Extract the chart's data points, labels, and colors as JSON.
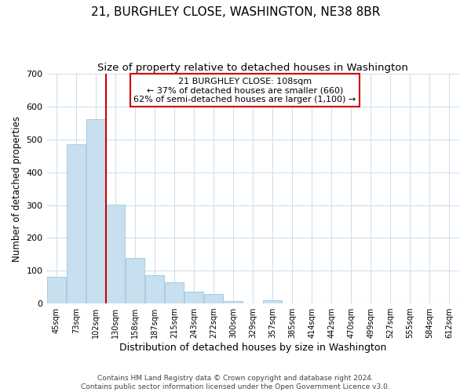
{
  "title": "21, BURGHLEY CLOSE, WASHINGTON, NE38 8BR",
  "subtitle": "Size of property relative to detached houses in Washington",
  "xlabel": "Distribution of detached houses by size in Washington",
  "ylabel": "Number of detached properties",
  "bar_color": "#c8dff0",
  "bar_edge_color": "#a8cce0",
  "grid_color": "#cce0f0",
  "annotation_box_edge": "#cc0000",
  "vline_color": "#cc0000",
  "vline_x": 2.5,
  "annotation_lines": [
    "21 BURGHLEY CLOSE: 108sqm",
    "← 37% of detached houses are smaller (660)",
    "62% of semi-detached houses are larger (1,100) →"
  ],
  "categories": [
    "45sqm",
    "73sqm",
    "102sqm",
    "130sqm",
    "158sqm",
    "187sqm",
    "215sqm",
    "243sqm",
    "272sqm",
    "300sqm",
    "329sqm",
    "357sqm",
    "385sqm",
    "414sqm",
    "442sqm",
    "470sqm",
    "499sqm",
    "527sqm",
    "555sqm",
    "584sqm",
    "612sqm"
  ],
  "bar_heights": [
    82,
    485,
    562,
    302,
    140,
    86,
    65,
    35,
    30,
    8,
    0,
    10,
    0,
    0,
    0,
    0,
    0,
    0,
    0,
    0,
    0
  ],
  "ylim": [
    0,
    700
  ],
  "yticks": [
    0,
    100,
    200,
    300,
    400,
    500,
    600,
    700
  ],
  "footer_lines": [
    "Contains HM Land Registry data © Crown copyright and database right 2024.",
    "Contains public sector information licensed under the Open Government Licence v3.0."
  ],
  "title_fontsize": 11,
  "subtitle_fontsize": 9.5,
  "xlabel_fontsize": 9,
  "ylabel_fontsize": 8.5,
  "xtick_fontsize": 7,
  "ytick_fontsize": 8,
  "footer_fontsize": 6.5,
  "ann_fontsize": 8
}
